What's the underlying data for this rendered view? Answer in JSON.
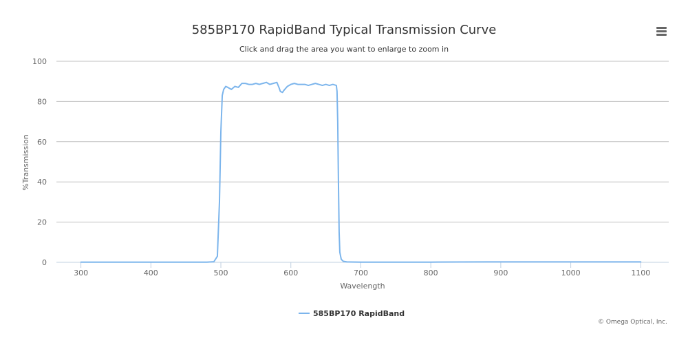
{
  "colors": {
    "series": "#7cb5ec",
    "grid": "#c0c0c0",
    "axis_line": "#c0d0e0",
    "text": "#333333",
    "muted": "#666666"
  },
  "toolbar": {
    "menu_icon": "hamburger-menu-icon"
  },
  "credits": "© Omega Optical, Inc.",
  "chart_data": {
    "type": "line",
    "title": "585BP170 RapidBand Typical Transmission Curve",
    "subtitle": "Click and drag the area you want to enlarge to zoom in",
    "xlabel": "Wavelength",
    "ylabel": "%Transmission",
    "xlim": [
      265,
      1140
    ],
    "ylim": [
      0,
      100
    ],
    "xticks": [
      300,
      400,
      500,
      600,
      700,
      800,
      900,
      1000,
      1100
    ],
    "yticks": [
      0,
      20,
      40,
      60,
      80,
      100
    ],
    "grid": true,
    "legend": "bottom-center",
    "series": [
      {
        "name": "585BP170 RapidBand",
        "x": [
          300,
          400,
          480,
          490,
          495,
          498,
          500,
          502,
          504,
          507,
          510,
          515,
          520,
          525,
          530,
          535,
          540,
          545,
          550,
          555,
          560,
          565,
          570,
          575,
          580,
          583,
          585,
          588,
          590,
          595,
          600,
          605,
          610,
          615,
          620,
          625,
          630,
          635,
          640,
          645,
          650,
          655,
          660,
          665,
          666,
          667,
          668,
          669,
          670,
          672,
          675,
          680,
          700,
          800,
          880,
          900,
          1000,
          1100
        ],
        "y": [
          0.1,
          0.1,
          0.1,
          0.3,
          3,
          30,
          65,
          83,
          86,
          87.5,
          87,
          86,
          87.5,
          87,
          89,
          89,
          88.5,
          88.5,
          89,
          88.5,
          89,
          89.5,
          88.5,
          89,
          89.5,
          87,
          85,
          84.5,
          85.5,
          87.5,
          88.5,
          89,
          88.5,
          88.5,
          88.5,
          88,
          88.5,
          89,
          88.5,
          88,
          88.5,
          88,
          88.5,
          88,
          85,
          70,
          40,
          15,
          5,
          1.5,
          0.5,
          0.2,
          0.1,
          0.1,
          0.2,
          0.2,
          0.2,
          0.2
        ]
      }
    ]
  }
}
